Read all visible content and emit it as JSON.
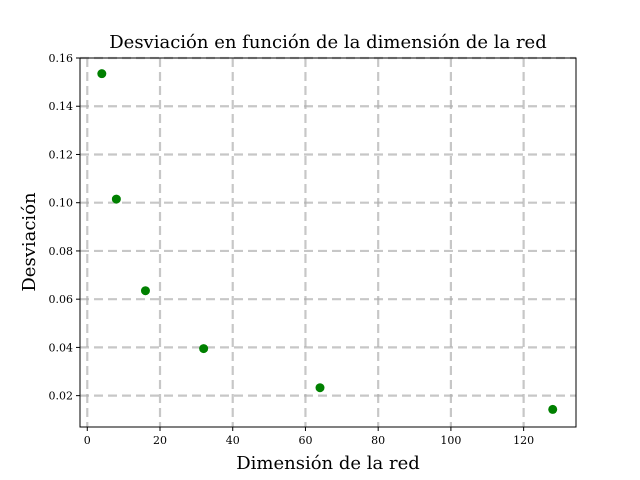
{
  "chart_data": {
    "type": "scatter",
    "title": "Desviación en función de la dimensión de la red",
    "xlabel": "Dimensión de la red",
    "ylabel": "Desviación",
    "xlim": [
      -2,
      134.4
    ],
    "ylim": [
      0.007,
      0.16
    ],
    "xticks": [
      0,
      20,
      40,
      60,
      80,
      100,
      120
    ],
    "yticks": [
      0.02,
      0.04,
      0.06,
      0.08,
      0.1,
      0.12,
      0.14,
      0.16
    ],
    "grid": true,
    "series": [
      {
        "color": "#008000",
        "points": [
          {
            "x": 4,
            "y": 0.1535
          },
          {
            "x": 8,
            "y": 0.1015
          },
          {
            "x": 16,
            "y": 0.0635
          },
          {
            "x": 32,
            "y": 0.0395
          },
          {
            "x": 64,
            "y": 0.0233
          },
          {
            "x": 128,
            "y": 0.0143
          }
        ]
      }
    ]
  }
}
